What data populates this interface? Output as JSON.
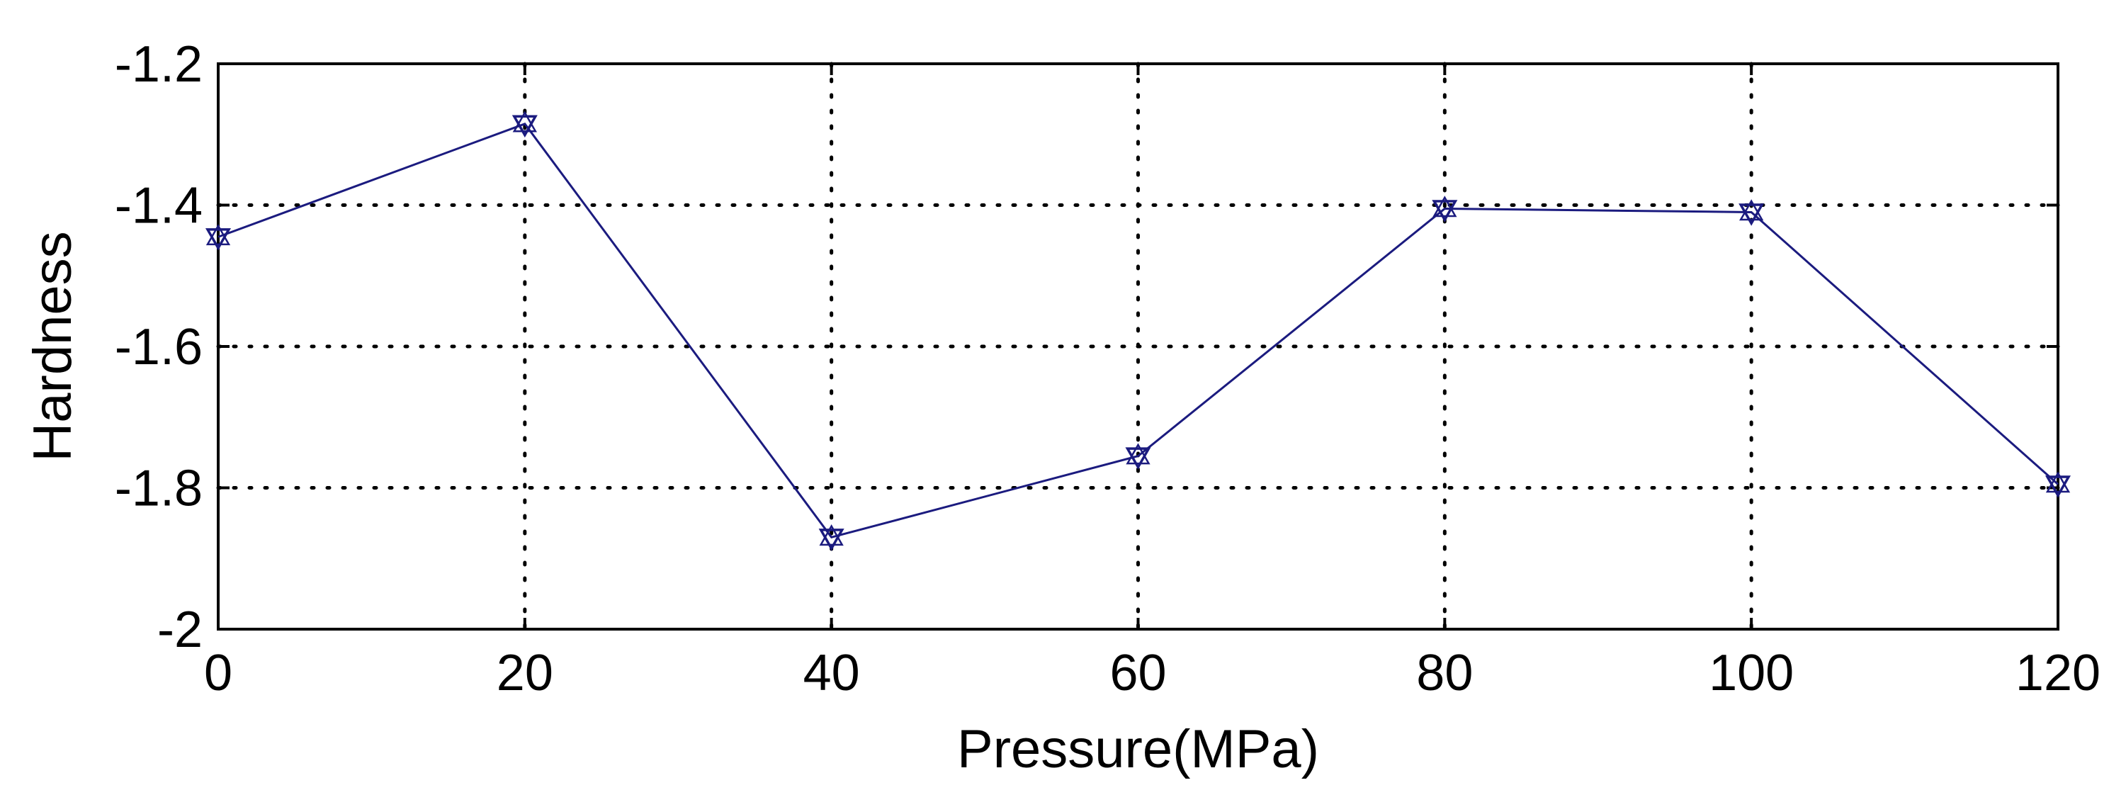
{
  "chart_data": {
    "type": "line",
    "title": "",
    "xlabel": "Pressure(MPa)",
    "ylabel": "Hardness",
    "xlim": [
      0,
      120
    ],
    "ylim": [
      -2,
      -1.2
    ],
    "xticks": [
      "0",
      "20",
      "40",
      "60",
      "80",
      "100",
      "120"
    ],
    "yticks": [
      "-1.2",
      "-1.4",
      "-1.6",
      "-1.8",
      "-2"
    ],
    "grid": true,
    "series": [
      {
        "x": [
          0,
          20,
          40,
          60,
          80,
          100,
          120
        ],
        "y": [
          -1.445,
          -1.285,
          -1.87,
          -1.755,
          -1.405,
          -1.41,
          -1.795
        ],
        "marker": "triangle-down",
        "color": "#1b1b7f"
      }
    ]
  }
}
